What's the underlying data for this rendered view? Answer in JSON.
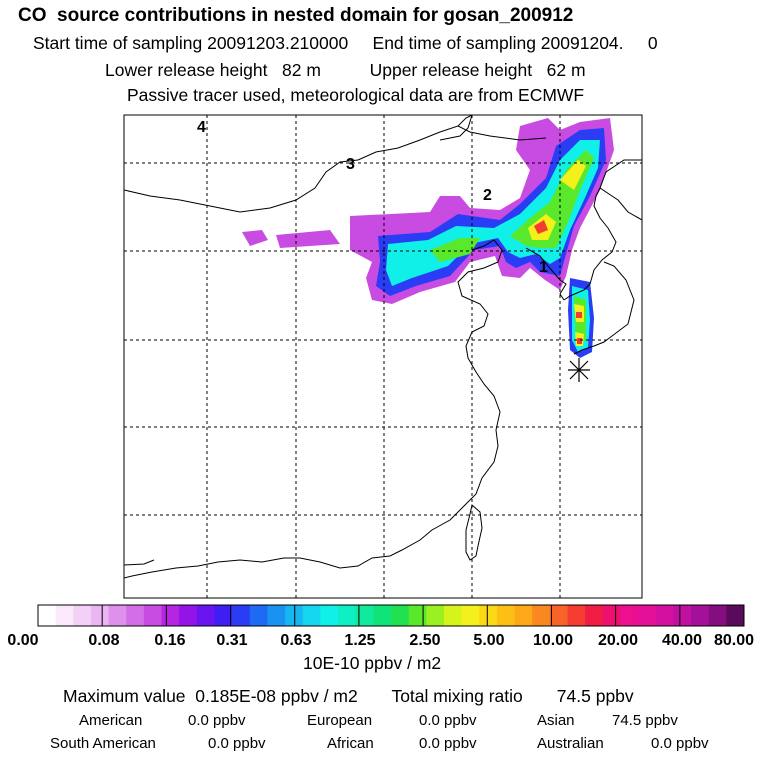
{
  "header": {
    "title": "CO  source contributions in nested domain for gosan_200912",
    "start_label": "Start time of sampling 20091203.210000",
    "end_label": "End time of sampling 20091204.     0",
    "lower_label": "Lower release height   82 m",
    "upper_label": "Upper release height   62 m",
    "tracer_label": "Passive tracer used, meteorological data are from ECMWF"
  },
  "chart_data": {
    "type": "heatmap",
    "title": "CO  source contributions in nested domain for gosan_200912",
    "trajectory_labels": [
      "1",
      "2",
      "3",
      "4"
    ],
    "colorbar": {
      "tick_labels": [
        "0.00",
        "0.08",
        "0.16",
        "0.31",
        "0.63",
        "1.25",
        "2.50",
        "5.00",
        "10.00",
        "20.00",
        "40.00",
        "80.00"
      ],
      "unit": "10E-10 ppbv / m2",
      "colors": [
        "#ffffff",
        "#fae8fb",
        "#f3d0f6",
        "#eab6f1",
        "#de90ea",
        "#d46ee6",
        "#c94ce2",
        "#b626e0",
        "#9214e8",
        "#6a14f0",
        "#3e1ef2",
        "#2a3cf4",
        "#1e6af2",
        "#1a92f2",
        "#18b6f0",
        "#14d6ee",
        "#10f0e8",
        "#10eec4",
        "#10ea9c",
        "#10e478",
        "#20e050",
        "#5ae82c",
        "#9af020",
        "#d6f41c",
        "#f4f01c",
        "#fad814",
        "#fcc014",
        "#fca818",
        "#fa8820",
        "#f86428",
        "#f43c30",
        "#f01c44",
        "#ee1070",
        "#ec1090",
        "#e41098",
        "#d410a0",
        "#c010a0",
        "#a4109a",
        "#840e80",
        "#5a0a5a"
      ]
    },
    "max_value": "Maximum value  0.185E-08 ppbv / m2",
    "total_mixing_ratio": "Total mixing ratio       74.5 ppbv"
  },
  "regions": {
    "american_label": "American",
    "american_value": "0.0 ppbv",
    "european_label": "European",
    "european_value": "0.0 ppbv",
    "asian_label": "Asian",
    "asian_value": "74.5 ppbv",
    "south_american_label": "South American",
    "south_american_value": "0.0 ppbv",
    "african_label": "African",
    "african_value": "0.0 ppbv",
    "australian_label": "Australian",
    "australian_value": "0.0 ppbv"
  }
}
